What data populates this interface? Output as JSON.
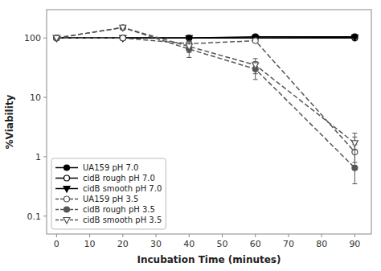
{
  "chart_data": {
    "type": "line",
    "xlabel": "Incubation Time (minutes)",
    "ylabel": "%Viability",
    "x": [
      0,
      20,
      40,
      60,
      90
    ],
    "series": [
      {
        "name": "UA159 pH 7.0",
        "color": "#000000",
        "marker": "circle",
        "line_style": "solid",
        "values": [
          100,
          100,
          100,
          105,
          105
        ],
        "error_low": [
          3,
          3,
          3,
          4,
          4
        ],
        "error_high": [
          3,
          3,
          3,
          4,
          4
        ]
      },
      {
        "name": "cidB rough pH 7.0",
        "color": "#000000",
        "marker": "open-circle",
        "line_style": "solid",
        "values": [
          100,
          100,
          100,
          100,
          100
        ],
        "error_low": [
          3,
          3,
          3,
          4,
          4
        ],
        "error_high": [
          3,
          3,
          3,
          4,
          4
        ]
      },
      {
        "name": "cidB smooth pH 7.0",
        "color": "#000000",
        "marker": "triangle-down",
        "line_style": "solid",
        "values": [
          100,
          100,
          100,
          100,
          102
        ],
        "error_low": [
          3,
          3,
          3,
          4,
          4
        ],
        "error_high": [
          3,
          3,
          3,
          4,
          4
        ]
      },
      {
        "name": "UA159 pH 3.5",
        "color": "#555555",
        "marker": "open-circle",
        "line_style": "dashed",
        "values": [
          100,
          100,
          80,
          90,
          1.2
        ],
        "error_low": [
          3,
          3,
          8,
          5,
          0.4
        ],
        "error_high": [
          3,
          3,
          8,
          5,
          0.4
        ]
      },
      {
        "name": "cidB rough pH 3.5",
        "color": "#555555",
        "marker": "circle",
        "line_style": "dashed",
        "values": [
          100,
          150,
          65,
          30,
          0.65
        ],
        "error_low": [
          3,
          12,
          18,
          10,
          0.3
        ],
        "error_high": [
          3,
          12,
          18,
          10,
          1.5
        ]
      },
      {
        "name": "cidB smooth pH 3.5",
        "color": "#555555",
        "marker": "open-triangle-down",
        "line_style": "dashed",
        "values": [
          100,
          150,
          72,
          35,
          1.7
        ],
        "error_low": [
          3,
          12,
          15,
          10,
          0.4
        ],
        "error_high": [
          3,
          12,
          15,
          10,
          0.8
        ]
      }
    ],
    "xlim": [
      -3,
      95
    ],
    "ylim": [
      0.05,
      300
    ],
    "xticks": [
      0,
      10,
      20,
      30,
      40,
      50,
      60,
      70,
      80,
      90
    ],
    "yticks": [
      0.1,
      1,
      10,
      100
    ],
    "log": "y",
    "grid": false,
    "legend": "lower left"
  }
}
